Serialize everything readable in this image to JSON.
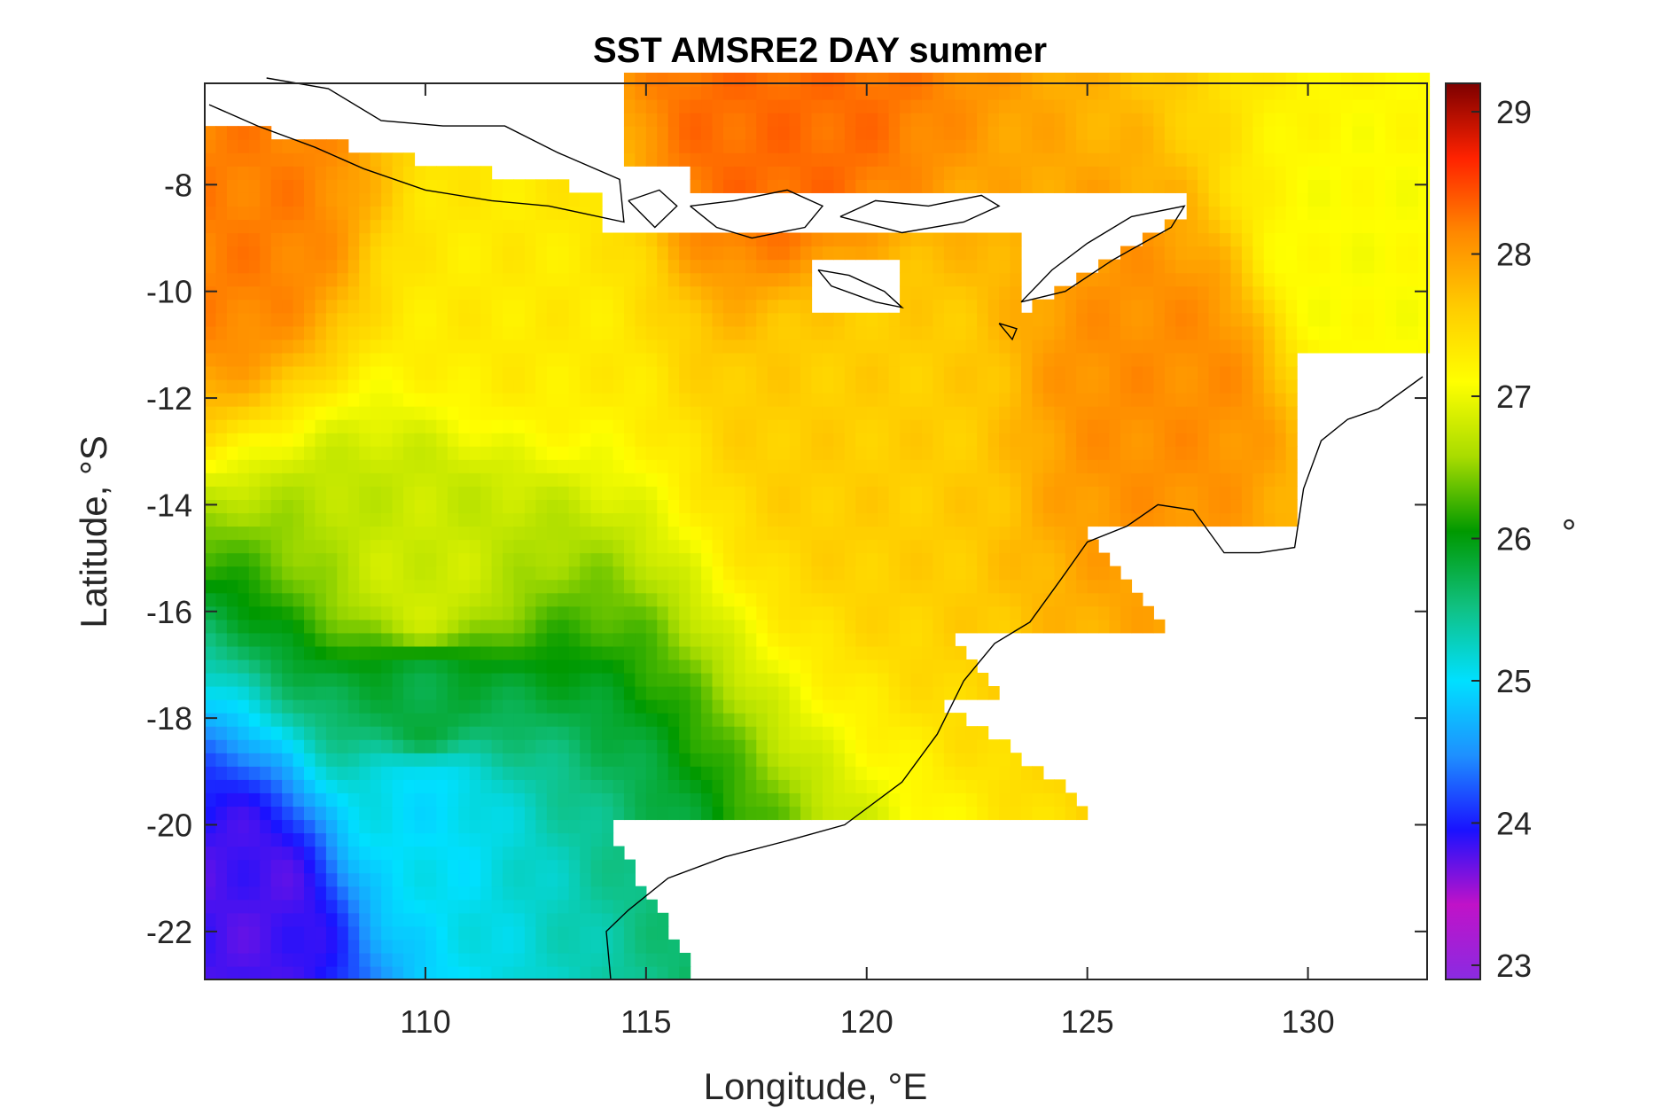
{
  "chart_data": {
    "type": "heatmap",
    "title": "SST AMSRE2 DAY summer",
    "xlabel": "Longitude, °E",
    "ylabel": "Latitude, °S",
    "xlim": [
      105,
      132.7
    ],
    "ylim": [
      -22.9,
      -6.1
    ],
    "xticks": [
      110,
      115,
      120,
      125,
      130
    ],
    "xtick_labels": [
      "110",
      "115",
      "120",
      "125",
      "130"
    ],
    "yticks": [
      -22,
      -20,
      -18,
      -16,
      -14,
      -12,
      -10,
      -8
    ],
    "ytick_labels": [
      "-22",
      "-20",
      "-18",
      "-16",
      "-14",
      "-12",
      "-10",
      "-8"
    ],
    "colorbar": {
      "label": "°",
      "limits": [
        22.9,
        29.2
      ],
      "ticks": [
        23,
        24,
        25,
        26,
        27,
        28,
        29
      ],
      "tick_labels": [
        "23",
        "24",
        "25",
        "26",
        "27",
        "28",
        "29"
      ],
      "colormap": [
        "#8a2be2",
        "#c012c8",
        "#1a12ff",
        "#1e90ff",
        "#00e0ff",
        "#10c080",
        "#009900",
        "#a8dc00",
        "#ffff00",
        "#ffcc00",
        "#ff8800",
        "#ff2200",
        "#7d0000"
      ]
    },
    "grid": false,
    "field": {
      "description_points": [
        {
          "lon": 105.5,
          "lat": -8.5,
          "sst": 28.2
        },
        {
          "lon": 112,
          "lat": -10,
          "sst": 27.3
        },
        {
          "lon": 120,
          "lat": -12,
          "sst": 27.6
        },
        {
          "lon": 127,
          "lat": -11.5,
          "sst": 28.1
        },
        {
          "lon": 110,
          "lat": -15.5,
          "sst": 26.8
        },
        {
          "lon": 110,
          "lat": -17.8,
          "sst": 25.8
        },
        {
          "lon": 110,
          "lat": -19.5,
          "sst": 25.0
        },
        {
          "lon": 106,
          "lat": -21.5,
          "sst": 23.8
        },
        {
          "lon": 131,
          "lat": -9.5,
          "sst": 27.1
        },
        {
          "lon": 118,
          "lat": -7,
          "sst": 28.3
        }
      ]
    }
  }
}
